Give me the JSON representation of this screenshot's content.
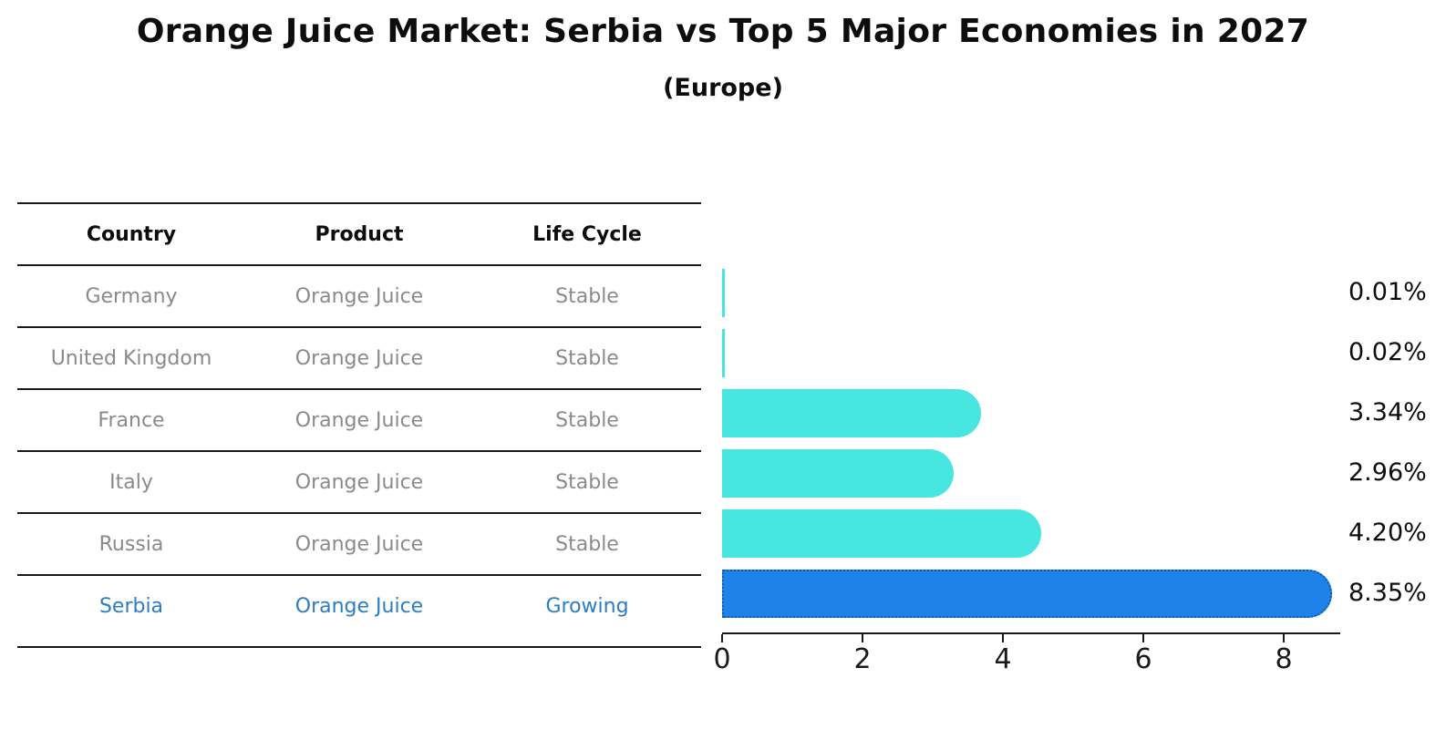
{
  "page": {
    "title": "Orange Juice Market: Serbia vs Top 5 Major Economies in 2027",
    "subtitle": "(Europe)"
  },
  "table": {
    "headers": [
      "Country",
      "Product",
      "Life Cycle"
    ],
    "rows": [
      {
        "country": "Germany",
        "product": "Orange Juice",
        "life_cycle": "Stable",
        "highlighted": false
      },
      {
        "country": "United Kingdom",
        "product": "Orange Juice",
        "life_cycle": "Stable",
        "highlighted": false
      },
      {
        "country": "France",
        "product": "Orange Juice",
        "life_cycle": "Stable",
        "highlighted": false
      },
      {
        "country": "Italy",
        "product": "Orange Juice",
        "life_cycle": "Stable",
        "highlighted": false
      },
      {
        "country": "Russia",
        "product": "Orange Juice",
        "life_cycle": "Stable",
        "highlighted": false
      },
      {
        "country": "Serbia",
        "product": "Orange Juice",
        "life_cycle": "Growing",
        "highlighted": true
      }
    ]
  },
  "chart_data": {
    "type": "bar",
    "orientation": "horizontal",
    "title": "Orange Juice Market: Serbia vs Top 5 Major Economies in 2027",
    "subtitle": "(Europe)",
    "categories": [
      "Germany",
      "United Kingdom",
      "France",
      "Italy",
      "Russia",
      "Serbia"
    ],
    "values": [
      0.01,
      0.02,
      3.34,
      2.96,
      4.2,
      8.35
    ],
    "value_labels": [
      "0.01%",
      "0.02%",
      "3.34%",
      "2.96%",
      "4.20%",
      "8.35%"
    ],
    "highlight_index": 5,
    "xlabel": "",
    "ylabel": "",
    "xlim": [
      0,
      8.8
    ],
    "xticks": [
      0,
      2,
      4,
      6,
      8
    ],
    "grid": false,
    "legend": "none"
  },
  "colors": {
    "bar": "#47e6e0",
    "highlight_bar": "#1e82e8",
    "highlight_border": "#1559a8",
    "row_text": "#8a8a8a",
    "highlight_text": "#2e7cc3",
    "line": "#1a1a1a",
    "label": "#0d0d0d"
  }
}
